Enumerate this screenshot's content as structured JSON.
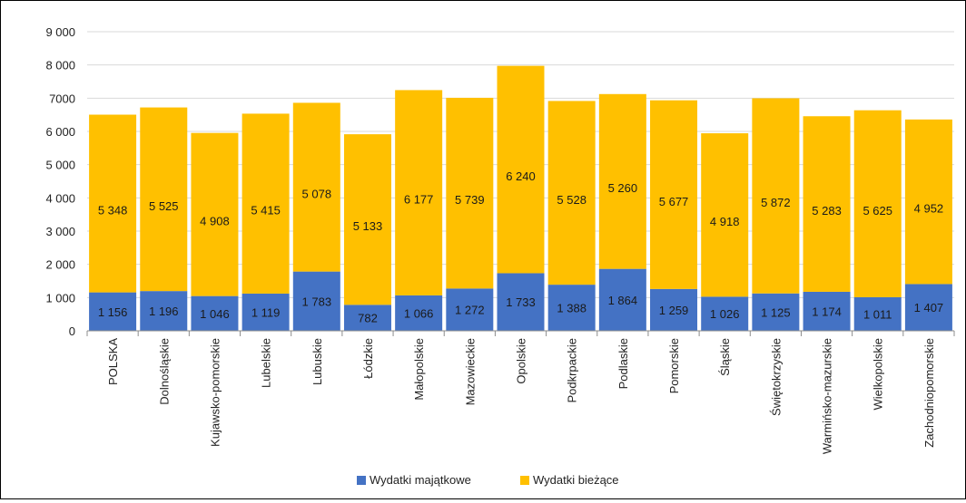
{
  "chart_data": {
    "type": "bar",
    "stacked": true,
    "categories": [
      "POLSKA",
      "Dolnośląskie",
      "Kujawsko-pomorskie",
      "Lubelskie",
      "Lubuskie",
      "Łódzkie",
      "Małopolskie",
      "Mazowieckie",
      "Opolskie",
      "Podkrpackie",
      "Podlaskie",
      "Pomorskie",
      "Śląskie",
      "Świętokrzyskie",
      "Warmińsko-mazurskie",
      "Wielkopolskie",
      "Zachodniopomorskie"
    ],
    "series": [
      {
        "name": "Wydatki majątkowe",
        "color": "#4472C4",
        "values": [
          1156,
          1196,
          1046,
          1119,
          1783,
          782,
          1066,
          1272,
          1733,
          1388,
          1864,
          1259,
          1026,
          1125,
          1174,
          1011,
          1407
        ],
        "labels": [
          "1 156",
          "1 196",
          "1 046",
          "1 119",
          "1 783",
          "782",
          "1 066",
          "1 272",
          "1 733",
          "1 388",
          "1 864",
          "1 259",
          "1 026",
          "1 125",
          "1 174",
          "1 011",
          "1 407"
        ]
      },
      {
        "name": "Wydatki bieżące",
        "color": "#FFC000",
        "values": [
          5348,
          5525,
          4908,
          5415,
          5078,
          5133,
          6177,
          5739,
          6240,
          5528,
          5260,
          5677,
          4918,
          5872,
          5283,
          5625,
          4952
        ],
        "labels": [
          "5 348",
          "5 525",
          "4 908",
          "5 415",
          "5 078",
          "5 133",
          "6 177",
          "5 739",
          "6 240",
          "5 528",
          "5 260",
          "5 677",
          "4 918",
          "5 872",
          "5 283",
          "5 625",
          "4 952"
        ]
      }
    ],
    "yticks": [
      0,
      1000,
      2000,
      3000,
      4000,
      5000,
      6000,
      7000,
      8000,
      9000
    ],
    "ytick_labels": [
      "0",
      "1 000",
      "2 000",
      "3 000",
      "4 000",
      "5 000",
      "6 000",
      "7000",
      "8 000",
      "9 000"
    ],
    "ylim": [
      0,
      9000
    ],
    "grid": true,
    "legend": "bottom",
    "title": "",
    "xlabel": "",
    "ylabel": ""
  }
}
